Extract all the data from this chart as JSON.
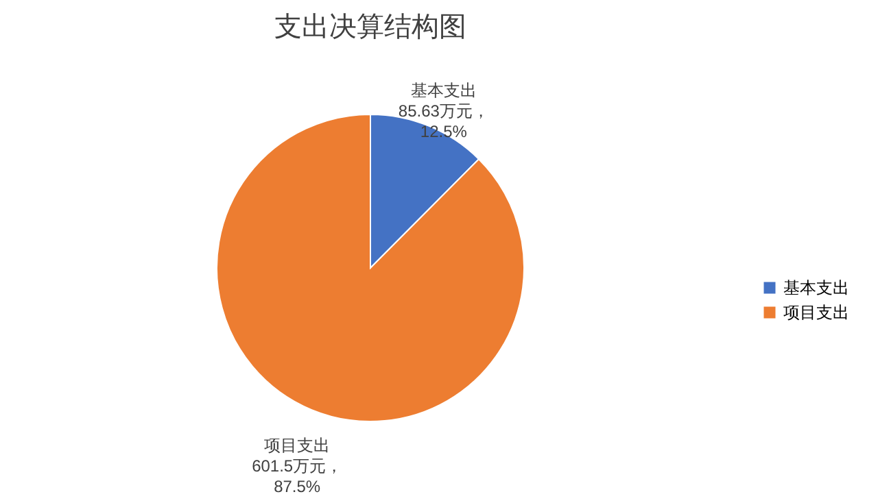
{
  "chart_data": {
    "type": "pie",
    "title": "支出决算结构图",
    "categories": [
      "基本支出",
      "项目支出"
    ],
    "values": [
      85.63,
      601.5
    ],
    "colors": [
      "#4472c4",
      "#ed7d31"
    ],
    "value_labels": [
      "85.63万元，\n12.5%",
      "601.5万元，\n87.5%"
    ],
    "legend": "right"
  }
}
